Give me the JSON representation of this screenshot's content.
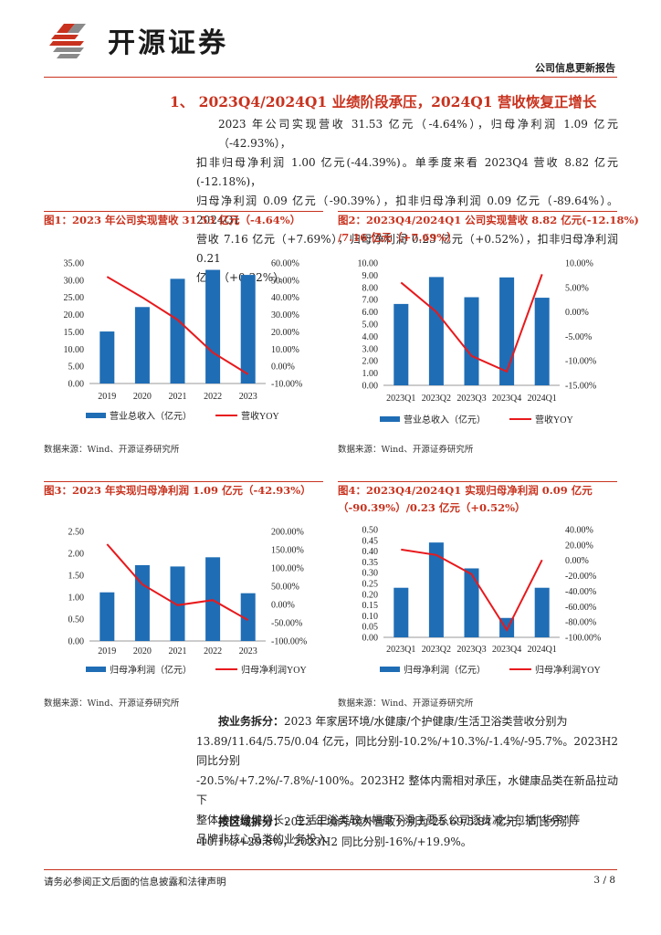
{
  "header": {
    "brand": "开源证券",
    "report_type": "公司信息更新报告"
  },
  "section": {
    "title": "1、 2023Q4/2024Q1 业绩阶段承压，2024Q1 营收恢复正增长",
    "paragraph": [
      "2023 年公司实现营收 31.53 亿元（-4.64%），归母净利润 1.09 亿元（-42.93%），",
      "扣非归母净利润 1.00 亿元(-44.39%)。单季度来看 2023Q4 营收 8.82 亿元(-12.18%)，",
      "归母净利润 0.09 亿元（-90.39%），扣非归母净利润 0.09 亿元（-89.64%）。2024Q1",
      "营收 7.16 亿元（+7.69%），归母净利润 0.23 亿元（+0.52%），扣非归母净利润 0.21",
      "亿元（+0.32%）。"
    ]
  },
  "figures": {
    "fig1": {
      "title": "图1：2023 年公司实现营收 31.53 亿元（-4.64%）",
      "source": "数据来源：Wind、开源证券研究所",
      "legend_bar": "营业总收入（亿元）",
      "legend_line": "营收YOY",
      "left_ticks": [
        "35.00",
        "30.00",
        "25.00",
        "20.00",
        "15.00",
        "10.00",
        "5.00",
        "0.00"
      ],
      "right_ticks": [
        "60.00%",
        "50.00%",
        "40.00%",
        "30.00%",
        "20.00%",
        "10.00%",
        "0.00%",
        "-10.00%"
      ]
    },
    "fig2": {
      "title_line1": "图2：2023Q4/2024Q1 公司实现营收 8.82 亿元(-12.18%)",
      "title_line2": "/7.16 亿元（+7.69%）",
      "source": "数据来源：Wind、开源证券研究所",
      "legend_bar": "营业总收入（亿元）",
      "legend_line": "营收YOY",
      "left_ticks": [
        "10.00",
        "9.00",
        "8.00",
        "7.00",
        "6.00",
        "5.00",
        "4.00",
        "3.00",
        "2.00",
        "1.00",
        "0.00"
      ],
      "right_ticks": [
        "10.00%",
        "5.00%",
        "0.00%",
        "-5.00%",
        "-10.00%",
        "-15.00%"
      ]
    },
    "fig3": {
      "title": "图3：2023 年实现归母净利润 1.09 亿元（-42.93%）",
      "source": "数据来源：Wind、开源证券研究所",
      "legend_bar": "归母净利润（亿元）",
      "legend_line": "归母净利润YOY",
      "left_ticks": [
        "2.50",
        "2.00",
        "1.50",
        "1.00",
        "0.50",
        "0.00"
      ],
      "right_ticks": [
        "200.00%",
        "150.00%",
        "100.00%",
        "50.00%",
        "0.00%",
        "-50.00%",
        "-100.00%"
      ]
    },
    "fig4": {
      "title_line1": "图4：2023Q4/2024Q1  实现归母净利润  0.09  亿元",
      "title_line2": "（-90.39%）/0.23 亿元（+0.52%）",
      "source": "数据来源：Wind、开源证券研究所",
      "legend_bar": "归母净利润（亿元）",
      "legend_line": "归母净利润YOY",
      "left_ticks": [
        "0.50",
        "0.45",
        "0.40",
        "0.35",
        "0.30",
        "0.25",
        "0.20",
        "0.15",
        "0.10",
        "0.05",
        "0.00"
      ],
      "right_ticks": [
        "40.00%",
        "20.00%",
        "0.00%",
        "-20.00%",
        "-40.00%",
        "-60.00%",
        "-80.00%",
        "-100.00%"
      ]
    }
  },
  "chart_data": [
    {
      "type": "bar",
      "categories": [
        "2019",
        "2020",
        "2021",
        "2022",
        "2023"
      ],
      "series": [
        {
          "name": "营业总收入（亿元）",
          "type": "bar",
          "axis": "left",
          "values": [
            15.1,
            22.2,
            30.4,
            33.0,
            31.53
          ]
        },
        {
          "name": "营收YOY",
          "type": "line",
          "axis": "right",
          "values": [
            52,
            40,
            27,
            8,
            -4.64
          ]
        }
      ],
      "ylim_left": [
        0,
        35
      ],
      "ylim_right": [
        -10,
        60
      ]
    },
    {
      "type": "bar",
      "categories": [
        "2023Q1",
        "2023Q2",
        "2023Q3",
        "2023Q4",
        "2024Q1"
      ],
      "series": [
        {
          "name": "营业总收入（亿元）",
          "type": "bar",
          "axis": "left",
          "values": [
            6.65,
            8.85,
            7.2,
            8.82,
            7.16
          ]
        },
        {
          "name": "营收YOY",
          "type": "line",
          "axis": "right",
          "values": [
            6.0,
            0.0,
            -9.0,
            -12.18,
            7.69
          ]
        }
      ],
      "ylim_left": [
        0,
        10
      ],
      "ylim_right": [
        -15,
        10
      ]
    },
    {
      "type": "bar",
      "categories": [
        "2019",
        "2020",
        "2021",
        "2022",
        "2023"
      ],
      "series": [
        {
          "name": "归母净利润（亿元）",
          "type": "bar",
          "axis": "left",
          "values": [
            1.11,
            1.73,
            1.7,
            1.91,
            1.09
          ]
        },
        {
          "name": "归母净利润YOY",
          "type": "line",
          "axis": "right",
          "values": [
            165,
            55,
            -2,
            12,
            -42.93
          ]
        }
      ],
      "ylim_left": [
        0,
        2.5
      ],
      "ylim_right": [
        -100,
        200
      ]
    },
    {
      "type": "bar",
      "categories": [
        "2023Q1",
        "2023Q2",
        "2023Q3",
        "2023Q4",
        "2024Q1"
      ],
      "series": [
        {
          "name": "归母净利润（亿元）",
          "type": "bar",
          "axis": "left",
          "values": [
            0.23,
            0.44,
            0.32,
            0.09,
            0.23
          ]
        },
        {
          "name": "归母净利润YOY",
          "type": "line",
          "axis": "right",
          "values": [
            14,
            7,
            -18,
            -90.39,
            0.52
          ]
        }
      ],
      "ylim_left": [
        0,
        0.5
      ],
      "ylim_right": [
        -100,
        40
      ]
    }
  ],
  "business": {
    "label": "按业务拆分：",
    "text": [
      "2023 年家居环境/水健康/个护健康/生活卫浴类营收分别为",
      "13.89/11.64/5.75/0.04 亿元，同比分别-10.2%/+10.3%/-1.4%/-95.7%。2023H2 同比分别",
      "-20.5%/+7.2%/-7.8%/-100%。2023H2 整体内需相对承压，水健康品类在新品拉动下",
      "整体维持稳健增长，生活卫浴类较大幅度下滑主要系公司逐步减少包括“华帝”等",
      "品牌非核心品类的业务投入"
    ]
  },
  "region": {
    "label": "按区域拆分：",
    "text": [
      "2023 年境内/境外营收分别为 25.69/5.84 亿元，同比分别",
      "-10.1%/+29.8%，2023H2 同比分别-16%/+19.9%。"
    ]
  },
  "footer": {
    "disclaimer": "请务必参阅正文后面的信息披露和法律声明",
    "page": "3 / 8"
  },
  "colors": {
    "accent": "#c8321e",
    "bar": "#1f6db5",
    "line": "#e8191c"
  }
}
